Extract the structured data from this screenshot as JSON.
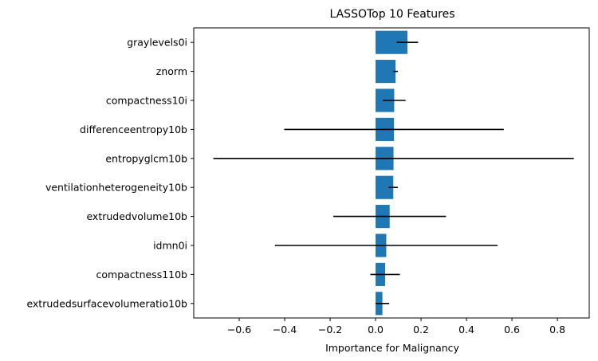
{
  "chart_data": {
    "type": "bar",
    "orientation": "horizontal",
    "title": "LASSOTop 10 Features",
    "xlabel": "Importance for Malignancy",
    "ylabel": "",
    "xlim": [
      -0.8,
      0.94
    ],
    "xticks": [
      -0.6,
      -0.4,
      -0.2,
      0.0,
      0.2,
      0.4,
      0.6,
      0.8
    ],
    "xtick_labels": [
      "−0.6",
      "−0.4",
      "−0.2",
      "0.0",
      "0.2",
      "0.4",
      "0.6",
      "0.8"
    ],
    "grid": false,
    "bar_color": "#1f77b4",
    "errorbar_color": "#000000",
    "categories": [
      "graylevels0i",
      "znorm",
      "compactness10i",
      "differenceentropy10b",
      "entropyglcm10b",
      "ventilationheterogeneity10b",
      "extrudedvolume10b",
      "idmn0i",
      "compactness110b",
      "extrudedsurfacevolumeratio10b"
    ],
    "values": [
      0.14,
      0.088,
      0.082,
      0.081,
      0.079,
      0.078,
      0.062,
      0.047,
      0.042,
      0.03
    ],
    "errors": [
      0.047,
      0.01,
      0.05,
      0.483,
      0.793,
      0.02,
      0.248,
      0.49,
      0.065,
      0.03
    ]
  }
}
